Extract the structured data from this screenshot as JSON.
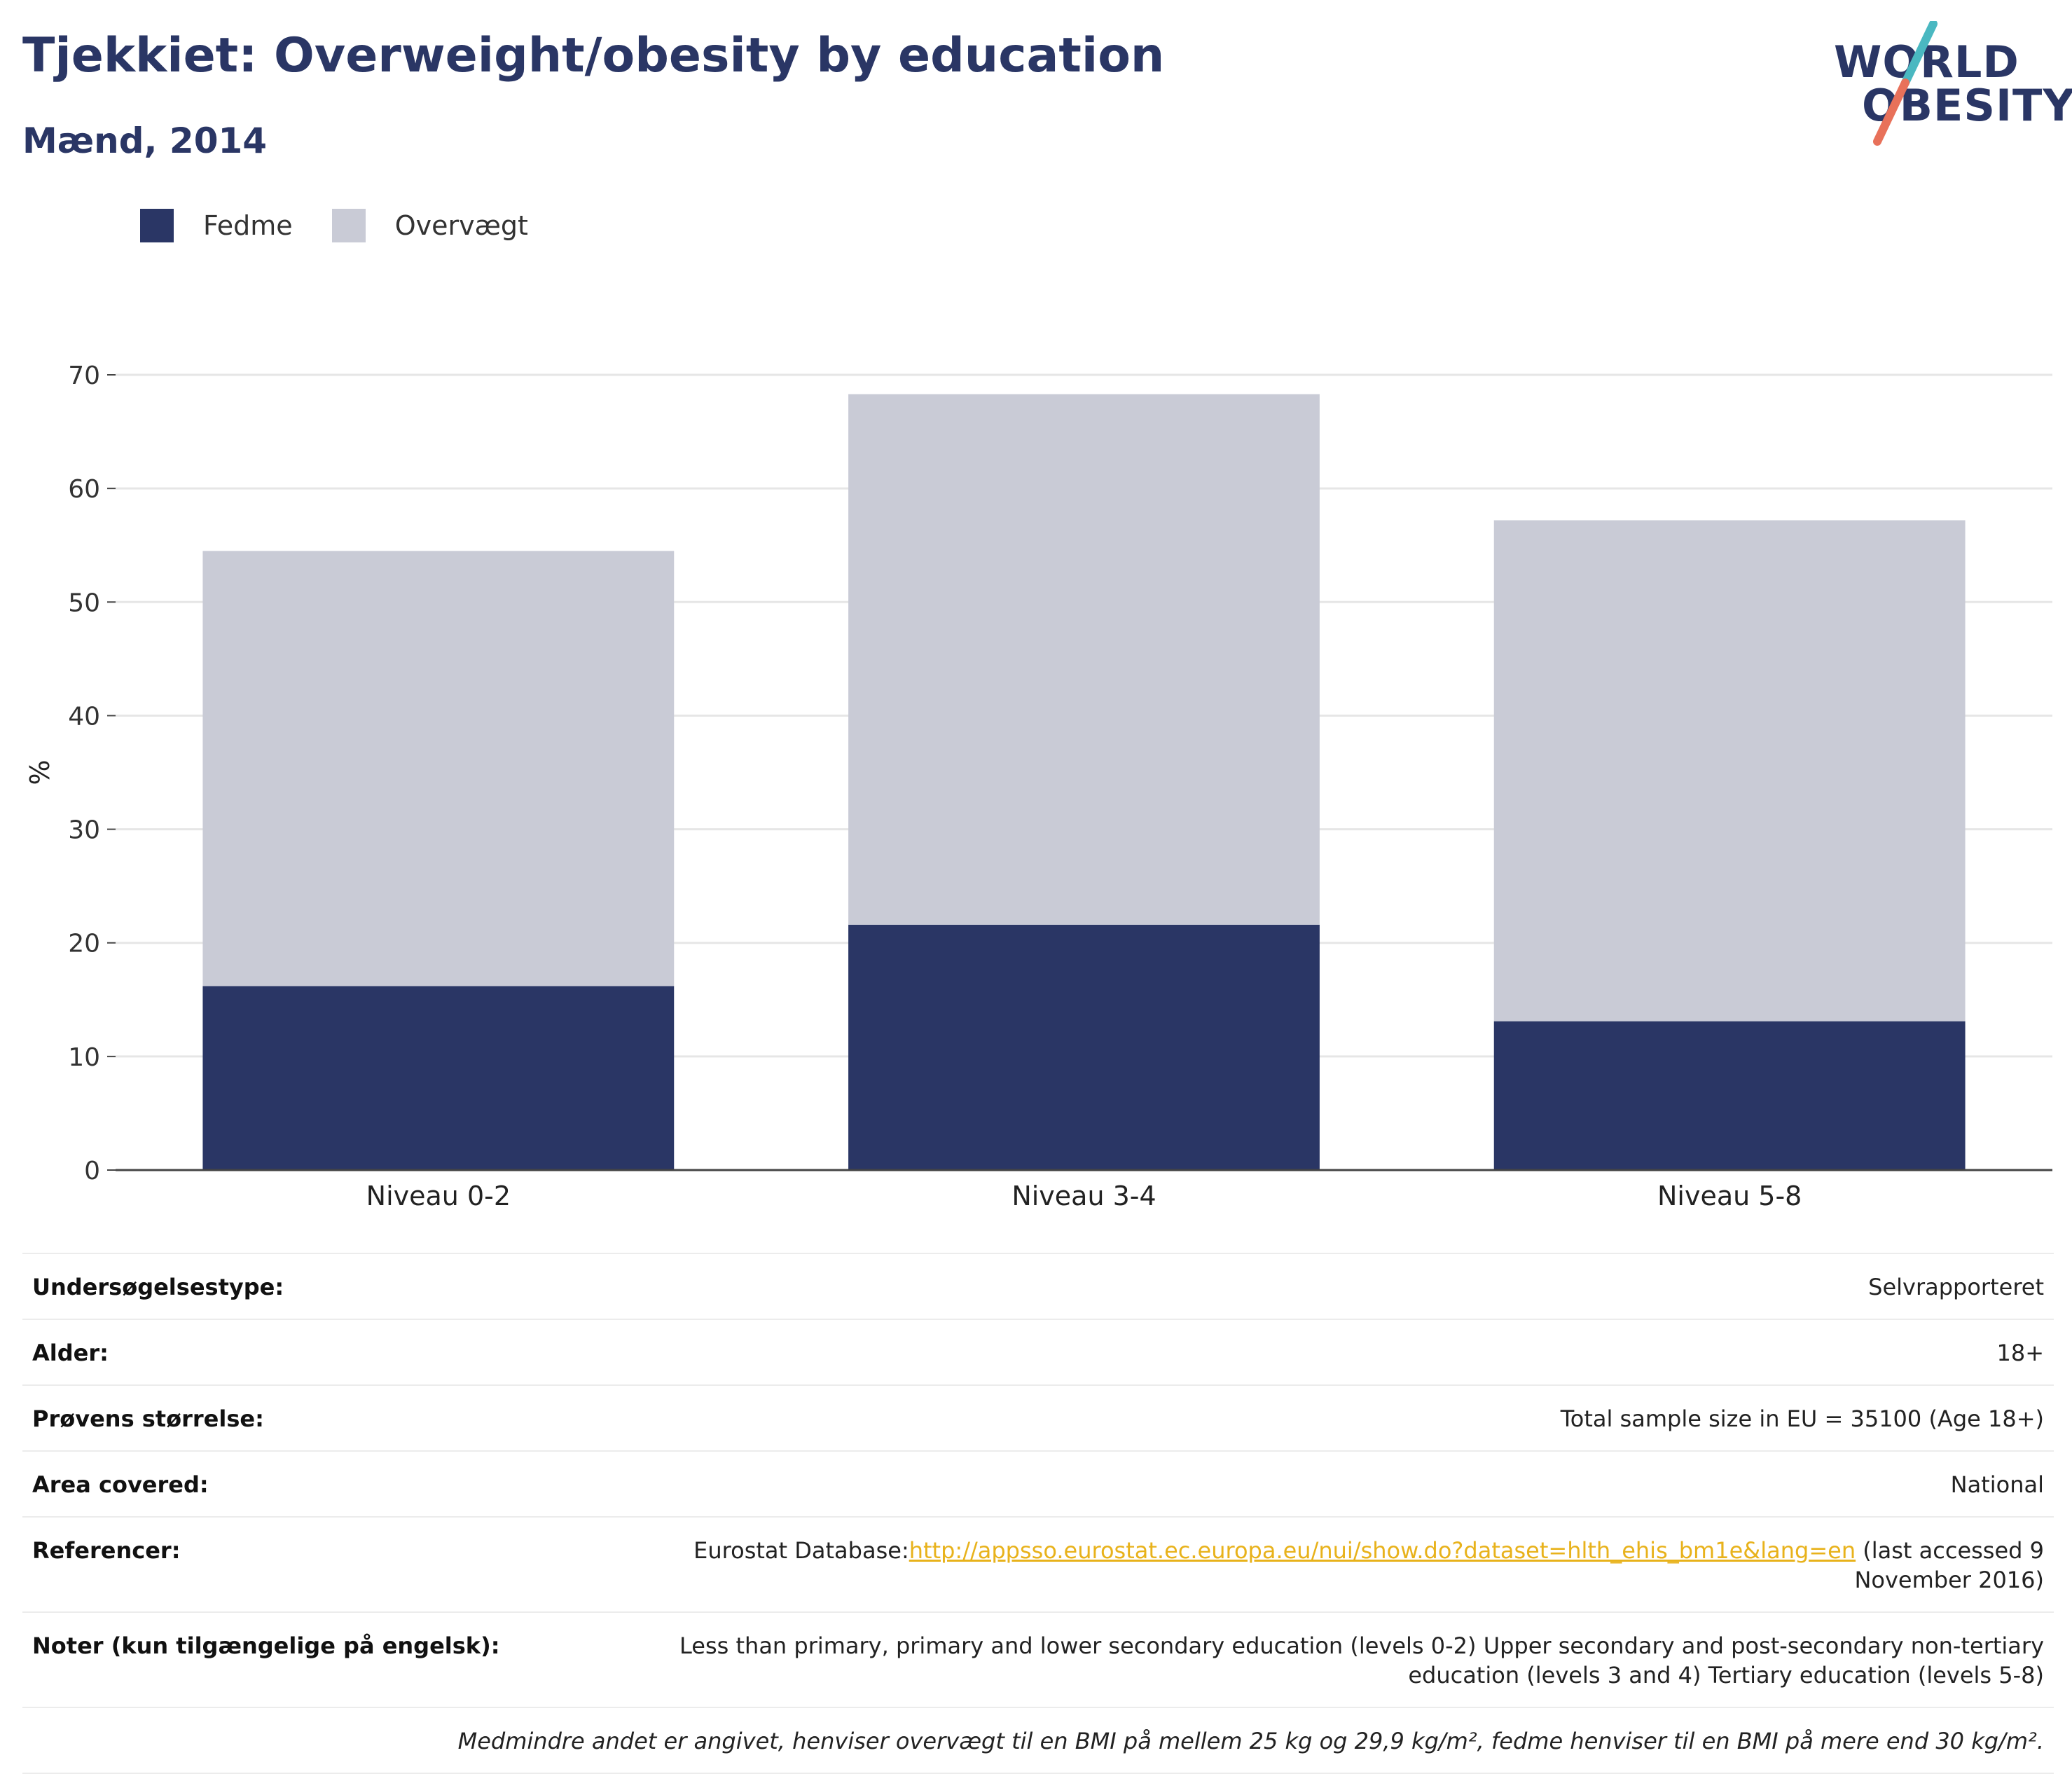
{
  "header": {
    "title": "Tjekkiet: Overweight/obesity by education",
    "subtitle": "Mænd, 2014"
  },
  "logo": {
    "line1": "WORLD",
    "line2": "OBESITY",
    "colors": {
      "text": "#2a3665",
      "slash_top": "#4ab8c1",
      "slash_bottom": "#e8715a"
    }
  },
  "colors": {
    "fedme": "#2a3665",
    "overvaegt": "#c9cbd6",
    "grid": "#e6e6e6",
    "axis": "#444444",
    "link": "#e8b21b"
  },
  "legend": [
    {
      "label": "Fedme",
      "color": "#2a3665"
    },
    {
      "label": "Overvægt",
      "color": "#c9cbd6"
    }
  ],
  "chart_data": {
    "type": "bar",
    "stacked": true,
    "categories": [
      "Niveau 0-2",
      "Niveau 3-4",
      "Niveau 5-8"
    ],
    "series": [
      {
        "name": "Fedme",
        "values": [
          16.2,
          21.6,
          13.1
        ]
      },
      {
        "name": "Overvægt",
        "values": [
          38.3,
          46.7,
          44.1
        ]
      }
    ],
    "totals": [
      54.5,
      68.3,
      57.2
    ],
    "ylabel": "%",
    "ylim": [
      0,
      70
    ],
    "yticks": [
      0,
      10,
      20,
      30,
      40,
      50,
      60,
      70
    ],
    "grid": true,
    "legend_position": "top-left"
  },
  "info": {
    "rows": [
      {
        "key": "Undersøgelsestype:",
        "value": "Selvrapporteret"
      },
      {
        "key": "Alder:",
        "value": "18+"
      },
      {
        "key": "Prøvens størrelse:",
        "value": "Total sample size in EU = 35100 (Age 18+)"
      },
      {
        "key": "Area covered:",
        "value": "National"
      }
    ],
    "references": {
      "key": "Referencer:",
      "prefix": "Eurostat Database:",
      "link": "http://appsso.eurostat.ec.europa.eu/nui/show.do?dataset=hlth_ehis_bm1e&lang=en",
      "suffix": " (last accessed 9 November 2016)"
    },
    "notes": {
      "key": "Noter (kun tilgængelige på engelsk):",
      "value": "Less than primary, primary and lower secondary education (levels 0-2) Upper secondary and post-secondary non-tertiary education (levels 3 and 4) Tertiary education (levels 5-8)"
    },
    "footnote": "Medmindre andet er angivet, henviser overvægt til en BMI på mellem 25 kg og 29,9 kg/m², fedme henviser til en BMI på mere end 30 kg/m²."
  }
}
